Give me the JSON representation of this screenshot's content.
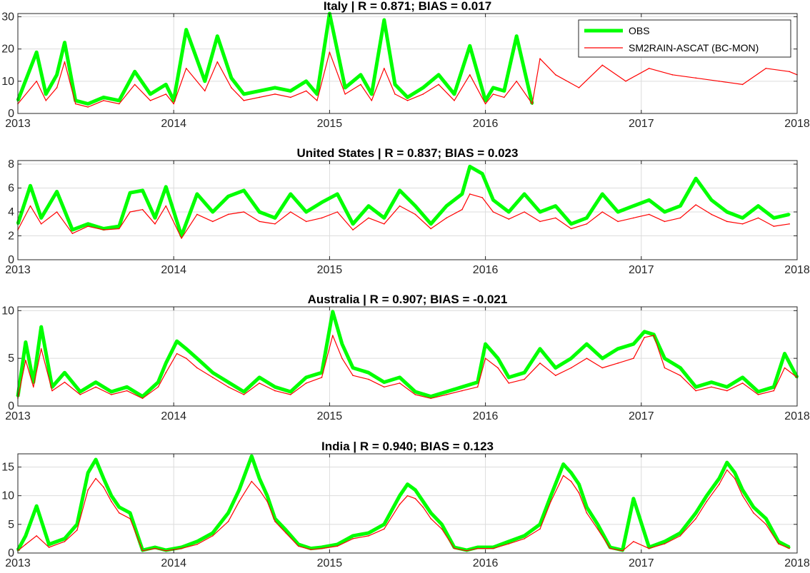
{
  "chart_data": [
    {
      "type": "line",
      "title": "Italy | R = 0.871; BIAS = 0.017",
      "x_ticks": [
        "2013",
        "2014",
        "2015",
        "2016",
        "2017",
        "2018"
      ],
      "xlim": [
        2013,
        2018
      ],
      "ylim": [
        0,
        31
      ],
      "y_ticks": [
        0,
        10,
        20,
        30
      ],
      "grid": true,
      "legend": {
        "location": "top-right",
        "entries": [
          "OBS",
          "SM2RAIN-ASCAT (BC-MON)"
        ]
      },
      "series": [
        {
          "name": "OBS",
          "color": "#00ff00",
          "x": [
            2013.0,
            2013.12,
            2013.18,
            2013.25,
            2013.3,
            2013.37,
            2013.45,
            2013.55,
            2013.65,
            2013.75,
            2013.85,
            2013.95,
            2014.0,
            2014.08,
            2014.2,
            2014.28,
            2014.37,
            2014.45,
            2014.55,
            2014.65,
            2014.75,
            2014.85,
            2014.92,
            2015.0,
            2015.1,
            2015.2,
            2015.27,
            2015.35,
            2015.42,
            2015.5,
            2015.6,
            2015.7,
            2015.8,
            2015.9,
            2016.0,
            2016.05,
            2016.12,
            2016.2,
            2016.3
          ],
          "y": [
            4,
            19,
            6,
            12,
            22,
            4,
            3,
            5,
            4,
            13,
            6,
            9,
            4,
            26,
            10,
            24,
            11,
            6,
            7,
            8,
            7,
            10,
            6,
            31,
            8,
            12,
            6,
            29,
            9,
            5,
            8,
            12,
            6,
            21,
            4,
            8,
            7,
            24,
            3
          ]
        },
        {
          "name": "SM2RAIN-ASCAT (BC-MON)",
          "color": "#ff0000",
          "x": [
            2013.0,
            2013.12,
            2013.18,
            2013.25,
            2013.3,
            2013.37,
            2013.45,
            2013.55,
            2013.65,
            2013.75,
            2013.85,
            2013.95,
            2014.0,
            2014.08,
            2014.2,
            2014.28,
            2014.37,
            2014.45,
            2014.55,
            2014.65,
            2014.75,
            2014.85,
            2014.92,
            2015.0,
            2015.1,
            2015.2,
            2015.27,
            2015.35,
            2015.42,
            2015.5,
            2015.6,
            2015.7,
            2015.8,
            2015.9,
            2016.0,
            2016.05,
            2016.12,
            2016.2,
            2016.3,
            2016.35,
            2016.45,
            2016.6,
            2016.75,
            2016.9,
            2017.05,
            2017.2,
            2017.35,
            2017.5,
            2017.65,
            2017.8,
            2017.95,
            2018.0
          ],
          "y": [
            3,
            10,
            4,
            8,
            16,
            3,
            2,
            4,
            3,
            9,
            4,
            6,
            3,
            14,
            7,
            16,
            8,
            4,
            5,
            6,
            5,
            7,
            4,
            19,
            6,
            9,
            4,
            14,
            6,
            4,
            6,
            9,
            4,
            12,
            3,
            6,
            5,
            10,
            3,
            17,
            12,
            8,
            15,
            10,
            14,
            12,
            11,
            10,
            9,
            14,
            13,
            12
          ]
        }
      ]
    },
    {
      "type": "line",
      "title": "United States | R = 0.837; BIAS = 0.023",
      "x_ticks": [
        "2013",
        "2014",
        "2015",
        "2016",
        "2017",
        "2018"
      ],
      "xlim": [
        2013,
        2018
      ],
      "ylim": [
        0,
        8.3
      ],
      "y_ticks": [
        0,
        2,
        4,
        6,
        8
      ],
      "grid": true,
      "series": [
        {
          "name": "OBS",
          "color": "#00ff00",
          "x": [
            2013.0,
            2013.08,
            2013.15,
            2013.25,
            2013.35,
            2013.45,
            2013.55,
            2013.65,
            2013.72,
            2013.8,
            2013.88,
            2013.95,
            2014.05,
            2014.15,
            2014.25,
            2014.35,
            2014.45,
            2014.55,
            2014.65,
            2014.75,
            2014.85,
            2014.95,
            2015.05,
            2015.15,
            2015.25,
            2015.35,
            2015.45,
            2015.55,
            2015.65,
            2015.75,
            2015.85,
            2015.9,
            2015.98,
            2016.05,
            2016.15,
            2016.25,
            2016.35,
            2016.45,
            2016.55,
            2016.65,
            2016.75,
            2016.85,
            2016.95,
            2017.05,
            2017.15,
            2017.25,
            2017.35,
            2017.45,
            2017.55,
            2017.65,
            2017.75,
            2017.85,
            2017.95
          ],
          "y": [
            3,
            6.2,
            3.5,
            5.7,
            2.5,
            3,
            2.6,
            2.8,
            5.6,
            5.8,
            3.5,
            6.1,
            2,
            5.5,
            4,
            5.3,
            5.8,
            4,
            3.5,
            5.5,
            4,
            4.8,
            5.5,
            3,
            4.5,
            3.5,
            5.8,
            4.5,
            3,
            4.5,
            5.5,
            7.8,
            7.2,
            5,
            4,
            5.5,
            4,
            4.5,
            3,
            3.5,
            5.5,
            4,
            4.5,
            5,
            4,
            4.5,
            6.8,
            5,
            4,
            3.5,
            4.5,
            3.5,
            3.8
          ]
        },
        {
          "name": "SM2RAIN-ASCAT (BC-MON)",
          "color": "#ff0000",
          "x": [
            2013.0,
            2013.08,
            2013.15,
            2013.25,
            2013.35,
            2013.45,
            2013.55,
            2013.65,
            2013.72,
            2013.8,
            2013.88,
            2013.95,
            2014.05,
            2014.15,
            2014.25,
            2014.35,
            2014.45,
            2014.55,
            2014.65,
            2014.75,
            2014.85,
            2014.95,
            2015.05,
            2015.15,
            2015.25,
            2015.35,
            2015.45,
            2015.55,
            2015.65,
            2015.75,
            2015.85,
            2015.9,
            2015.98,
            2016.05,
            2016.15,
            2016.25,
            2016.35,
            2016.45,
            2016.55,
            2016.65,
            2016.75,
            2016.85,
            2016.95,
            2017.05,
            2017.15,
            2017.25,
            2017.35,
            2017.45,
            2017.55,
            2017.65,
            2017.75,
            2017.85,
            2017.95
          ],
          "y": [
            2.5,
            4.5,
            3,
            4,
            2.2,
            2.8,
            2.5,
            2.6,
            4,
            4.2,
            3,
            4.5,
            1.8,
            3.8,
            3.2,
            3.8,
            4,
            3.2,
            3,
            4,
            3.2,
            3.5,
            4,
            2.5,
            3.5,
            3,
            4.5,
            3.8,
            2.6,
            3.5,
            4.2,
            5.5,
            5.2,
            4,
            3.4,
            4,
            3.2,
            3.5,
            2.6,
            3,
            4,
            3.2,
            3.5,
            3.8,
            3.2,
            3.5,
            4.6,
            3.8,
            3.2,
            3,
            3.5,
            2.8,
            3
          ]
        }
      ]
    },
    {
      "type": "line",
      "title": "Australia | R = 0.907; BIAS = -0.021",
      "x_ticks": [
        "2013",
        "2014",
        "2015",
        "2016",
        "2017",
        "2018"
      ],
      "xlim": [
        2013,
        2018
      ],
      "ylim": [
        0,
        10.4
      ],
      "y_ticks": [
        0,
        5,
        10
      ],
      "grid": true,
      "series": [
        {
          "name": "OBS",
          "color": "#00ff00",
          "x": [
            2013.0,
            2013.05,
            2013.1,
            2013.15,
            2013.22,
            2013.3,
            2013.4,
            2013.5,
            2013.6,
            2013.7,
            2013.8,
            2013.9,
            2013.95,
            2014.02,
            2014.08,
            2014.15,
            2014.25,
            2014.35,
            2014.45,
            2014.55,
            2014.65,
            2014.75,
            2014.85,
            2014.95,
            2015.02,
            2015.08,
            2015.15,
            2015.25,
            2015.35,
            2015.45,
            2015.55,
            2015.65,
            2015.75,
            2015.85,
            2015.95,
            2016.0,
            2016.08,
            2016.15,
            2016.25,
            2016.35,
            2016.45,
            2016.55,
            2016.65,
            2016.75,
            2016.85,
            2016.95,
            2017.02,
            2017.08,
            2017.15,
            2017.25,
            2017.35,
            2017.45,
            2017.55,
            2017.65,
            2017.75,
            2017.85,
            2017.92,
            2018.0
          ],
          "y": [
            1,
            6.7,
            2.5,
            8.3,
            2,
            3.5,
            1.5,
            2.5,
            1.5,
            2,
            1,
            2.5,
            4.5,
            6.8,
            6,
            5,
            3.5,
            2.5,
            1.5,
            3,
            2,
            1.5,
            3,
            3.5,
            9.9,
            6.5,
            4,
            3.5,
            2.5,
            3,
            1.5,
            1,
            1.5,
            2,
            2.5,
            6.5,
            5,
            3,
            3.5,
            6,
            4,
            5,
            6.5,
            5,
            6,
            6.5,
            7.8,
            7.5,
            5,
            4,
            2,
            2.5,
            2,
            3,
            1.5,
            2,
            5.5,
            3
          ]
        },
        {
          "name": "SM2RAIN-ASCAT (BC-MON)",
          "color": "#ff0000",
          "x": [
            2013.0,
            2013.05,
            2013.1,
            2013.15,
            2013.22,
            2013.3,
            2013.4,
            2013.5,
            2013.6,
            2013.7,
            2013.8,
            2013.9,
            2013.95,
            2014.02,
            2014.08,
            2014.15,
            2014.25,
            2014.35,
            2014.45,
            2014.55,
            2014.65,
            2014.75,
            2014.85,
            2014.95,
            2015.02,
            2015.08,
            2015.15,
            2015.25,
            2015.35,
            2015.45,
            2015.55,
            2015.65,
            2015.75,
            2015.85,
            2015.95,
            2016.0,
            2016.08,
            2016.15,
            2016.25,
            2016.35,
            2016.45,
            2016.55,
            2016.65,
            2016.75,
            2016.85,
            2016.95,
            2017.02,
            2017.08,
            2017.15,
            2017.25,
            2017.35,
            2017.45,
            2017.55,
            2017.65,
            2017.75,
            2017.85,
            2017.92,
            2018.0
          ],
          "y": [
            0.8,
            4.8,
            2,
            6,
            1.6,
            2.5,
            1.2,
            2,
            1.2,
            1.6,
            0.8,
            2,
            3.5,
            5.5,
            5,
            4,
            3,
            2,
            1.2,
            2.4,
            1.6,
            1.2,
            2.4,
            3,
            7.4,
            5,
            3.2,
            2.8,
            2,
            2.4,
            1.2,
            0.8,
            1.2,
            1.6,
            2,
            5,
            4,
            2.4,
            2.8,
            4.5,
            3.2,
            4,
            5,
            4,
            4.5,
            5,
            7.2,
            7.4,
            4,
            3.2,
            1.6,
            2,
            1.6,
            2.4,
            1.2,
            1.6,
            4,
            3
          ]
        }
      ]
    },
    {
      "type": "line",
      "title": "India | R = 0.940; BIAS = 0.123",
      "x_ticks": [
        "2013",
        "2014",
        "2015",
        "2016",
        "2017",
        "2018"
      ],
      "xlim": [
        2013,
        2018
      ],
      "ylim": [
        0,
        17.3
      ],
      "y_ticks": [
        0,
        5,
        10,
        15
      ],
      "grid": true,
      "series": [
        {
          "name": "OBS",
          "color": "#00ff00",
          "x": [
            2013.0,
            2013.05,
            2013.12,
            2013.2,
            2013.3,
            2013.38,
            2013.45,
            2013.5,
            2013.55,
            2013.6,
            2013.65,
            2013.72,
            2013.8,
            2013.88,
            2013.95,
            2014.05,
            2014.15,
            2014.25,
            2014.35,
            2014.42,
            2014.5,
            2014.55,
            2014.6,
            2014.65,
            2014.72,
            2014.8,
            2014.88,
            2014.95,
            2015.05,
            2015.15,
            2015.25,
            2015.35,
            2015.45,
            2015.5,
            2015.55,
            2015.6,
            2015.65,
            2015.72,
            2015.8,
            2015.88,
            2015.95,
            2016.05,
            2016.15,
            2016.25,
            2016.35,
            2016.42,
            2016.5,
            2016.55,
            2016.6,
            2016.65,
            2016.72,
            2016.8,
            2016.88,
            2016.95,
            2017.05,
            2017.15,
            2017.25,
            2017.35,
            2017.42,
            2017.5,
            2017.55,
            2017.6,
            2017.65,
            2017.72,
            2017.8,
            2017.88,
            2017.95
          ],
          "y": [
            0.5,
            3,
            8.2,
            1.5,
            2.5,
            5,
            14,
            16.3,
            13,
            10,
            8,
            7,
            0.5,
            1,
            0.5,
            1,
            2,
            3.5,
            7,
            11,
            16.9,
            13,
            10,
            6,
            4,
            1.5,
            0.8,
            1,
            1.5,
            3,
            3.5,
            5,
            10,
            12,
            11,
            9,
            7,
            5,
            1,
            0.5,
            1,
            1,
            2,
            3,
            5,
            10,
            15.5,
            14,
            12,
            8,
            5,
            1,
            0.5,
            9.5,
            1,
            2,
            3.5,
            7,
            10,
            13,
            15.8,
            14,
            11,
            8,
            6,
            2,
            1
          ]
        },
        {
          "name": "SM2RAIN-ASCAT (BC-MON)",
          "color": "#ff0000",
          "x": [
            2013.0,
            2013.05,
            2013.12,
            2013.2,
            2013.3,
            2013.38,
            2013.45,
            2013.5,
            2013.55,
            2013.6,
            2013.65,
            2013.72,
            2013.8,
            2013.88,
            2013.95,
            2014.05,
            2014.15,
            2014.25,
            2014.35,
            2014.42,
            2014.5,
            2014.55,
            2014.6,
            2014.65,
            2014.72,
            2014.8,
            2014.88,
            2014.95,
            2015.05,
            2015.15,
            2015.25,
            2015.35,
            2015.45,
            2015.5,
            2015.55,
            2015.6,
            2015.65,
            2015.72,
            2015.8,
            2015.88,
            2015.95,
            2016.05,
            2016.15,
            2016.25,
            2016.35,
            2016.42,
            2016.5,
            2016.55,
            2016.6,
            2016.65,
            2016.72,
            2016.8,
            2016.88,
            2016.95,
            2017.05,
            2017.15,
            2017.25,
            2017.35,
            2017.42,
            2017.5,
            2017.55,
            2017.6,
            2017.65,
            2017.72,
            2017.8,
            2017.88,
            2017.95
          ],
          "y": [
            0.4,
            1.5,
            3,
            1,
            2,
            4,
            11,
            13,
            11.5,
            9,
            7,
            6,
            0.4,
            0.8,
            0.4,
            0.8,
            1.5,
            3,
            5.5,
            9,
            12.5,
            11,
            9,
            5.5,
            3.5,
            1.2,
            0.6,
            0.8,
            1.2,
            2.5,
            3,
            4.2,
            8.5,
            10,
            9.5,
            8,
            6,
            4.2,
            0.8,
            0.4,
            0.8,
            0.8,
            1.6,
            2.5,
            4.2,
            9,
            13.5,
            12.5,
            10.5,
            7,
            4.2,
            0.8,
            0.4,
            2,
            0.8,
            1.6,
            3,
            6,
            9,
            12,
            14.5,
            13,
            10,
            7,
            5,
            1.6,
            0.8
          ]
        }
      ]
    }
  ]
}
